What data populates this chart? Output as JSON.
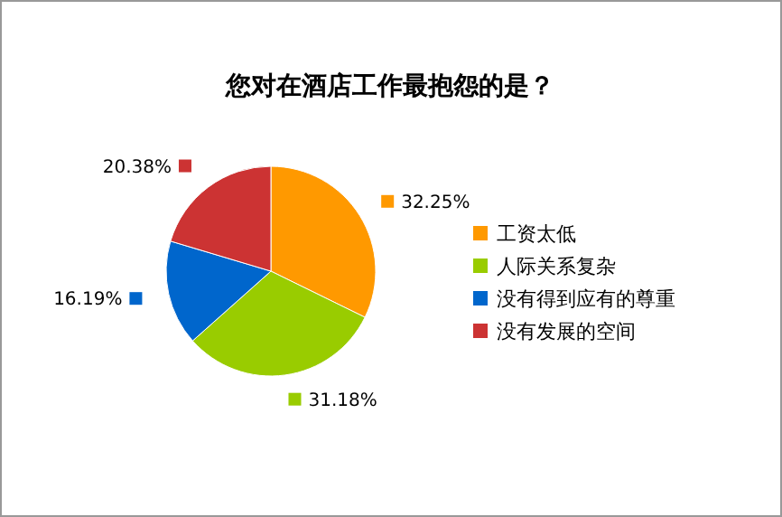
{
  "chart_data": {
    "type": "pie",
    "title": "您对在酒店工作最抱怨的是？",
    "categories": [
      "工资太低",
      "人际关系复杂",
      "没有得到应有的尊重",
      "没有发展的空间"
    ],
    "values": [
      32.25,
      31.18,
      16.19,
      20.38
    ],
    "value_labels": [
      "32.25%",
      "31.18%",
      "16.19%",
      "20.38%"
    ],
    "colors": [
      "#ff9900",
      "#99cc00",
      "#0066cc",
      "#cc3333"
    ],
    "legend": "right"
  }
}
